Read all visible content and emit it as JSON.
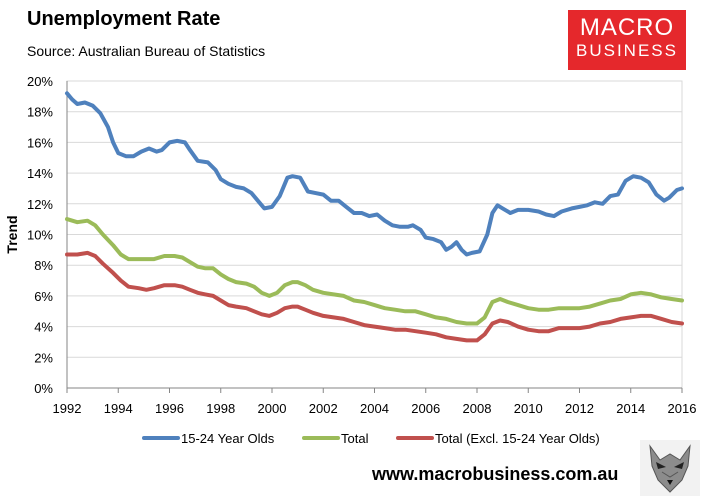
{
  "header": {
    "title": "Unemployment Rate",
    "subtitle": "Source: Australian Bureau of Statistics"
  },
  "logo": {
    "line1": "MACRO",
    "line2": "BUSINESS",
    "bg_color": "#e5282c"
  },
  "footer": {
    "url": "www.macrobusiness.com.au",
    "mascot_icon": "wolf-icon"
  },
  "chart_data": {
    "type": "line",
    "title": "Unemployment Rate",
    "xlabel": "",
    "ylabel": "Trend",
    "xlim": [
      1992,
      2016
    ],
    "ylim": [
      0,
      20
    ],
    "grid": true,
    "legend_position": "bottom",
    "x_ticks": [
      1992,
      1994,
      1996,
      1998,
      2000,
      2002,
      2004,
      2006,
      2008,
      2010,
      2012,
      2014,
      2016
    ],
    "x_tick_labels": [
      "1992",
      "1994",
      "1996",
      "1998",
      "2000",
      "2002",
      "2004",
      "2006",
      "2008",
      "2010",
      "2012",
      "2014",
      "2016"
    ],
    "y_ticks": [
      0,
      2,
      4,
      6,
      8,
      10,
      12,
      14,
      16,
      18,
      20
    ],
    "y_tick_labels": [
      "0%",
      "2%",
      "4%",
      "6%",
      "8%",
      "10%",
      "12%",
      "14%",
      "16%",
      "18%",
      "20%"
    ],
    "series": [
      {
        "name": "15-24 Year Olds",
        "color": "#4f81bd",
        "points": [
          [
            1992.0,
            19.2
          ],
          [
            1992.2,
            18.8
          ],
          [
            1992.4,
            18.5
          ],
          [
            1992.7,
            18.6
          ],
          [
            1993.0,
            18.4
          ],
          [
            1993.3,
            17.9
          ],
          [
            1993.6,
            17.0
          ],
          [
            1993.8,
            16.0
          ],
          [
            1994.0,
            15.3
          ],
          [
            1994.3,
            15.1
          ],
          [
            1994.6,
            15.1
          ],
          [
            1994.9,
            15.4
          ],
          [
            1995.2,
            15.6
          ],
          [
            1995.5,
            15.4
          ],
          [
            1995.7,
            15.5
          ],
          [
            1996.0,
            16.0
          ],
          [
            1996.3,
            16.1
          ],
          [
            1996.6,
            16.0
          ],
          [
            1996.8,
            15.5
          ],
          [
            1997.1,
            14.8
          ],
          [
            1997.5,
            14.7
          ],
          [
            1997.8,
            14.2
          ],
          [
            1998.0,
            13.6
          ],
          [
            1998.3,
            13.3
          ],
          [
            1998.6,
            13.1
          ],
          [
            1998.9,
            13.0
          ],
          [
            1999.2,
            12.7
          ],
          [
            1999.5,
            12.1
          ],
          [
            1999.7,
            11.7
          ],
          [
            2000.0,
            11.8
          ],
          [
            2000.3,
            12.5
          ],
          [
            2000.6,
            13.7
          ],
          [
            2000.8,
            13.8
          ],
          [
            2001.1,
            13.7
          ],
          [
            2001.4,
            12.8
          ],
          [
            2001.7,
            12.7
          ],
          [
            2002.0,
            12.6
          ],
          [
            2002.3,
            12.2
          ],
          [
            2002.6,
            12.2
          ],
          [
            2002.9,
            11.8
          ],
          [
            2003.2,
            11.4
          ],
          [
            2003.5,
            11.4
          ],
          [
            2003.8,
            11.2
          ],
          [
            2004.1,
            11.3
          ],
          [
            2004.4,
            10.9
          ],
          [
            2004.7,
            10.6
          ],
          [
            2005.0,
            10.5
          ],
          [
            2005.3,
            10.5
          ],
          [
            2005.5,
            10.6
          ],
          [
            2005.8,
            10.3
          ],
          [
            2006.0,
            9.8
          ],
          [
            2006.3,
            9.7
          ],
          [
            2006.6,
            9.5
          ],
          [
            2006.8,
            9.0
          ],
          [
            2007.0,
            9.2
          ],
          [
            2007.2,
            9.5
          ],
          [
            2007.4,
            9.0
          ],
          [
            2007.6,
            8.7
          ],
          [
            2007.8,
            8.8
          ],
          [
            2008.1,
            8.9
          ],
          [
            2008.4,
            10.0
          ],
          [
            2008.6,
            11.4
          ],
          [
            2008.8,
            11.9
          ],
          [
            2009.0,
            11.7
          ],
          [
            2009.3,
            11.4
          ],
          [
            2009.6,
            11.6
          ],
          [
            2010.0,
            11.6
          ],
          [
            2010.4,
            11.5
          ],
          [
            2010.7,
            11.3
          ],
          [
            2011.0,
            11.2
          ],
          [
            2011.3,
            11.5
          ],
          [
            2011.7,
            11.7
          ],
          [
            2012.0,
            11.8
          ],
          [
            2012.3,
            11.9
          ],
          [
            2012.6,
            12.1
          ],
          [
            2012.9,
            12.0
          ],
          [
            2013.2,
            12.5
          ],
          [
            2013.5,
            12.6
          ],
          [
            2013.8,
            13.5
          ],
          [
            2014.1,
            13.8
          ],
          [
            2014.4,
            13.7
          ],
          [
            2014.7,
            13.4
          ],
          [
            2015.0,
            12.6
          ],
          [
            2015.3,
            12.2
          ],
          [
            2015.5,
            12.4
          ],
          [
            2015.8,
            12.9
          ],
          [
            2016.0,
            13.0
          ]
        ]
      },
      {
        "name": "Total",
        "color": "#9bbb59",
        "points": [
          [
            1992.0,
            11.0
          ],
          [
            1992.4,
            10.8
          ],
          [
            1992.8,
            10.9
          ],
          [
            1993.1,
            10.6
          ],
          [
            1993.4,
            10.0
          ],
          [
            1993.8,
            9.3
          ],
          [
            1994.1,
            8.7
          ],
          [
            1994.4,
            8.4
          ],
          [
            1994.8,
            8.4
          ],
          [
            1995.1,
            8.4
          ],
          [
            1995.4,
            8.4
          ],
          [
            1995.8,
            8.6
          ],
          [
            1996.2,
            8.6
          ],
          [
            1996.5,
            8.5
          ],
          [
            1996.8,
            8.2
          ],
          [
            1997.1,
            7.9
          ],
          [
            1997.4,
            7.8
          ],
          [
            1997.7,
            7.8
          ],
          [
            1998.0,
            7.4
          ],
          [
            1998.3,
            7.1
          ],
          [
            1998.6,
            6.9
          ],
          [
            1999.0,
            6.8
          ],
          [
            1999.3,
            6.6
          ],
          [
            1999.6,
            6.2
          ],
          [
            1999.9,
            6.0
          ],
          [
            2000.2,
            6.2
          ],
          [
            2000.5,
            6.7
          ],
          [
            2000.8,
            6.9
          ],
          [
            2001.0,
            6.9
          ],
          [
            2001.3,
            6.7
          ],
          [
            2001.6,
            6.4
          ],
          [
            2002.0,
            6.2
          ],
          [
            2002.4,
            6.1
          ],
          [
            2002.8,
            6.0
          ],
          [
            2003.2,
            5.7
          ],
          [
            2003.6,
            5.6
          ],
          [
            2004.0,
            5.4
          ],
          [
            2004.4,
            5.2
          ],
          [
            2004.8,
            5.1
          ],
          [
            2005.2,
            5.0
          ],
          [
            2005.6,
            5.0
          ],
          [
            2006.0,
            4.8
          ],
          [
            2006.4,
            4.6
          ],
          [
            2006.8,
            4.5
          ],
          [
            2007.2,
            4.3
          ],
          [
            2007.6,
            4.2
          ],
          [
            2008.0,
            4.2
          ],
          [
            2008.3,
            4.6
          ],
          [
            2008.6,
            5.6
          ],
          [
            2008.9,
            5.8
          ],
          [
            2009.2,
            5.6
          ],
          [
            2009.6,
            5.4
          ],
          [
            2010.0,
            5.2
          ],
          [
            2010.4,
            5.1
          ],
          [
            2010.8,
            5.1
          ],
          [
            2011.2,
            5.2
          ],
          [
            2011.6,
            5.2
          ],
          [
            2012.0,
            5.2
          ],
          [
            2012.4,
            5.3
          ],
          [
            2012.8,
            5.5
          ],
          [
            2013.2,
            5.7
          ],
          [
            2013.6,
            5.8
          ],
          [
            2014.0,
            6.1
          ],
          [
            2014.4,
            6.2
          ],
          [
            2014.8,
            6.1
          ],
          [
            2015.2,
            5.9
          ],
          [
            2015.6,
            5.8
          ],
          [
            2016.0,
            5.7
          ]
        ]
      },
      {
        "name": "Total (Excl. 15-24 Year Olds)",
        "color": "#c0504d",
        "points": [
          [
            1992.0,
            8.7
          ],
          [
            1992.4,
            8.7
          ],
          [
            1992.8,
            8.8
          ],
          [
            1993.1,
            8.6
          ],
          [
            1993.4,
            8.1
          ],
          [
            1993.8,
            7.5
          ],
          [
            1994.1,
            7.0
          ],
          [
            1994.4,
            6.6
          ],
          [
            1994.8,
            6.5
          ],
          [
            1995.1,
            6.4
          ],
          [
            1995.4,
            6.5
          ],
          [
            1995.8,
            6.7
          ],
          [
            1996.2,
            6.7
          ],
          [
            1996.5,
            6.6
          ],
          [
            1996.8,
            6.4
          ],
          [
            1997.1,
            6.2
          ],
          [
            1997.4,
            6.1
          ],
          [
            1997.7,
            6.0
          ],
          [
            1998.0,
            5.7
          ],
          [
            1998.3,
            5.4
          ],
          [
            1998.6,
            5.3
          ],
          [
            1999.0,
            5.2
          ],
          [
            1999.3,
            5.0
          ],
          [
            1999.6,
            4.8
          ],
          [
            1999.9,
            4.7
          ],
          [
            2000.2,
            4.9
          ],
          [
            2000.5,
            5.2
          ],
          [
            2000.8,
            5.3
          ],
          [
            2001.0,
            5.3
          ],
          [
            2001.3,
            5.1
          ],
          [
            2001.6,
            4.9
          ],
          [
            2002.0,
            4.7
          ],
          [
            2002.4,
            4.6
          ],
          [
            2002.8,
            4.5
          ],
          [
            2003.2,
            4.3
          ],
          [
            2003.6,
            4.1
          ],
          [
            2004.0,
            4.0
          ],
          [
            2004.4,
            3.9
          ],
          [
            2004.8,
            3.8
          ],
          [
            2005.2,
            3.8
          ],
          [
            2005.6,
            3.7
          ],
          [
            2006.0,
            3.6
          ],
          [
            2006.4,
            3.5
          ],
          [
            2006.8,
            3.3
          ],
          [
            2007.2,
            3.2
          ],
          [
            2007.6,
            3.1
          ],
          [
            2008.0,
            3.1
          ],
          [
            2008.3,
            3.5
          ],
          [
            2008.6,
            4.2
          ],
          [
            2008.9,
            4.4
          ],
          [
            2009.2,
            4.3
          ],
          [
            2009.6,
            4.0
          ],
          [
            2010.0,
            3.8
          ],
          [
            2010.4,
            3.7
          ],
          [
            2010.8,
            3.7
          ],
          [
            2011.2,
            3.9
          ],
          [
            2011.6,
            3.9
          ],
          [
            2012.0,
            3.9
          ],
          [
            2012.4,
            4.0
          ],
          [
            2012.8,
            4.2
          ],
          [
            2013.2,
            4.3
          ],
          [
            2013.6,
            4.5
          ],
          [
            2014.0,
            4.6
          ],
          [
            2014.4,
            4.7
          ],
          [
            2014.8,
            4.7
          ],
          [
            2015.2,
            4.5
          ],
          [
            2015.6,
            4.3
          ],
          [
            2016.0,
            4.2
          ]
        ]
      }
    ]
  }
}
